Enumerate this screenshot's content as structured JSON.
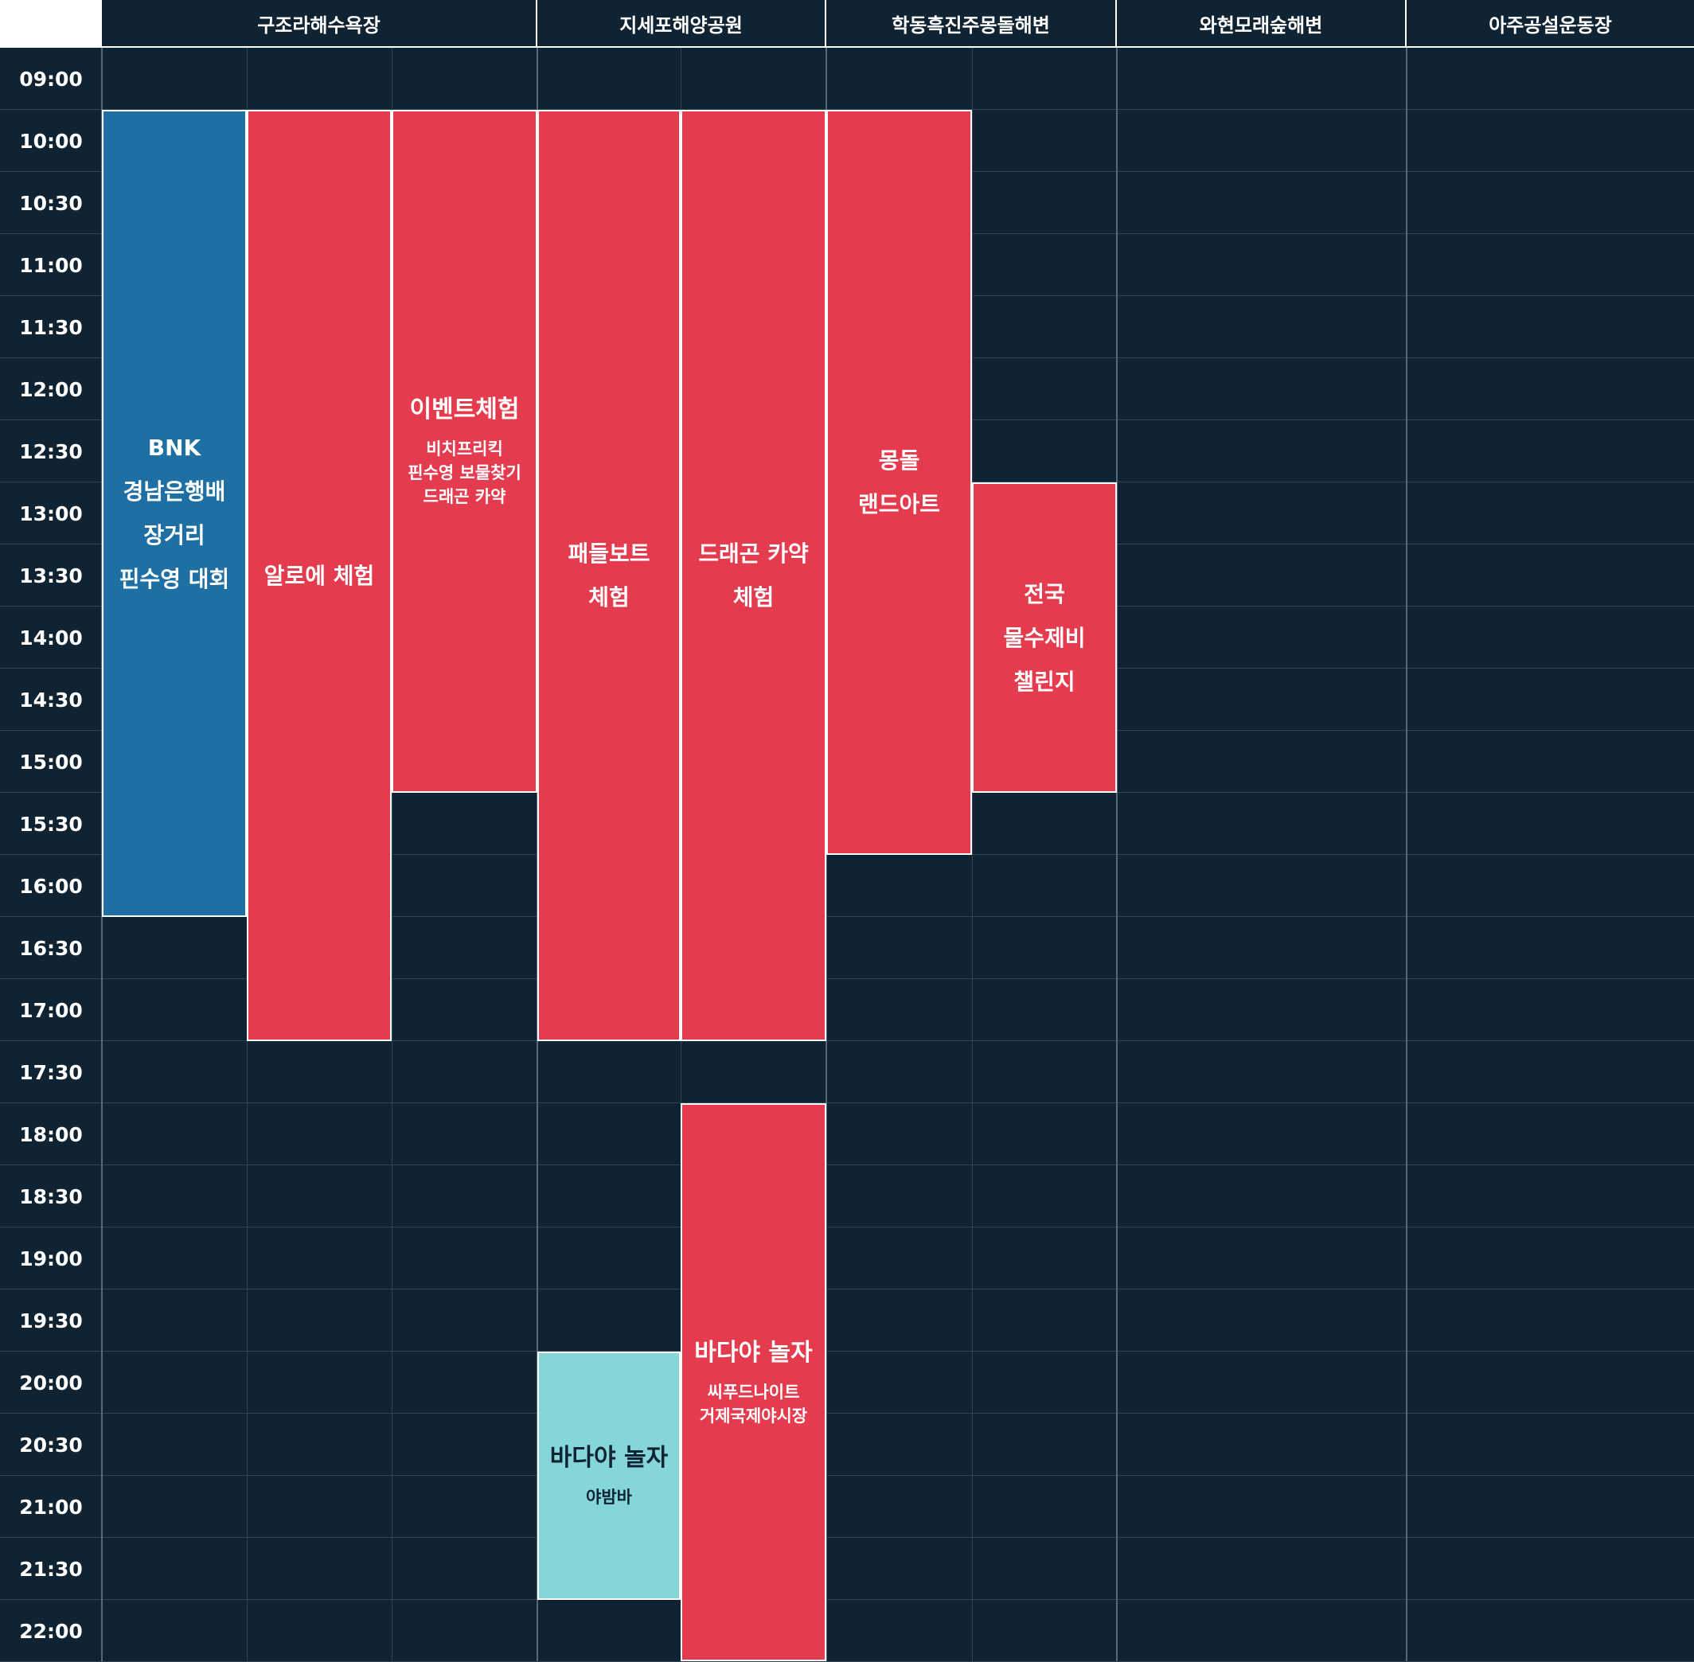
{
  "venues": [
    {
      "name": "구조라해수욕장"
    },
    {
      "name": "지세포해양공원"
    },
    {
      "name": "학동흑진주몽돌해변"
    },
    {
      "name": "와현모래숲해변"
    },
    {
      "name": "아주공설운동장"
    }
  ],
  "times": [
    "09:00",
    "10:00",
    "10:30",
    "11:00",
    "11:30",
    "12:00",
    "12:30",
    "13:00",
    "13:30",
    "14:00",
    "14:30",
    "15:00",
    "15:30",
    "16:00",
    "16:30",
    "17:00",
    "17:30",
    "18:00",
    "18:30",
    "19:00",
    "19:30",
    "20:00",
    "20:30",
    "21:00",
    "21:30",
    "22:00"
  ],
  "colors": {
    "background": "#0f2332",
    "red": "#e43b4e",
    "blue": "#1e6fa4",
    "teal": "#84d6d8"
  },
  "events": [
    {
      "venue": "구조라해수욕장",
      "title": "BNK\n경남은행배\n장거리\n핀수영 대회",
      "subtitle": "",
      "start": "10:00",
      "end": "16:30",
      "color": "blue"
    },
    {
      "venue": "구조라해수욕장",
      "title": "알로에 체험",
      "subtitle": "",
      "start": "10:00",
      "end": "17:30",
      "color": "red"
    },
    {
      "venue": "구조라해수욕장",
      "title": "이벤트체험",
      "subtitle": "비치프리킥\n핀수영 보물찾기\n드래곤 카약",
      "start": "10:00",
      "end": "15:30",
      "color": "red"
    },
    {
      "venue": "지세포해양공원",
      "title": "패들보트\n체험",
      "subtitle": "",
      "start": "10:00",
      "end": "17:30",
      "color": "red"
    },
    {
      "venue": "지세포해양공원",
      "title": "드래곤 카약\n체험",
      "subtitle": "",
      "start": "10:00",
      "end": "17:30",
      "color": "red"
    },
    {
      "venue": "학동흑진주몽돌해변",
      "title": "몽돌\n랜드아트",
      "subtitle": "",
      "start": "10:00",
      "end": "16:00",
      "color": "red"
    },
    {
      "venue": "학동흑진주몽돌해변",
      "title": "전국\n물수제비\n챌린지",
      "subtitle": "",
      "start": "13:00",
      "end": "15:30",
      "color": "red"
    },
    {
      "venue": "지세포해양공원",
      "title": "바다야 놀자",
      "subtitle": "야밤바",
      "start": "20:00",
      "end": "22:00",
      "color": "teal"
    },
    {
      "venue": "지세포해양공원",
      "title": "바다야 놀자",
      "subtitle": "씨푸드나이트\n거제국제야시장",
      "start": "18:00",
      "end": "22:30",
      "color": "red"
    }
  ]
}
